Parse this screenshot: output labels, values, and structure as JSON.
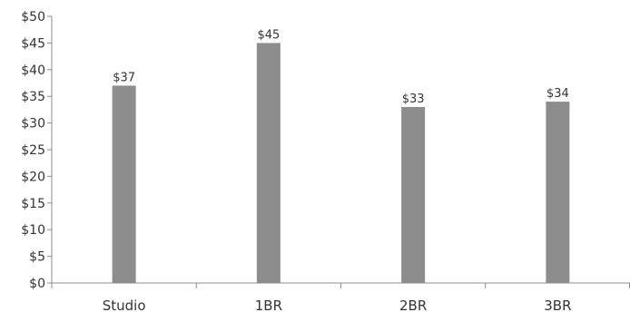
{
  "chart_data": {
    "type": "bar",
    "categories": [
      "Studio",
      "1BR",
      "2BR",
      "3BR"
    ],
    "values": [
      37,
      45,
      33,
      34
    ],
    "data_labels": [
      "$37",
      "$45",
      "$33",
      "$34"
    ],
    "y_ticks": [
      0,
      5,
      10,
      15,
      20,
      25,
      30,
      35,
      40,
      45,
      50
    ],
    "y_tick_labels": [
      "$0",
      "$5",
      "$10",
      "$15",
      "$20",
      "$25",
      "$30",
      "$35",
      "$40",
      "$45",
      "$50"
    ],
    "title": "",
    "xlabel": "",
    "ylabel": "",
    "ylim": [
      0,
      50
    ],
    "grid": false,
    "legend": "none",
    "bar_color": "#8c8c8c",
    "axis_color": "#8c8c8c"
  }
}
